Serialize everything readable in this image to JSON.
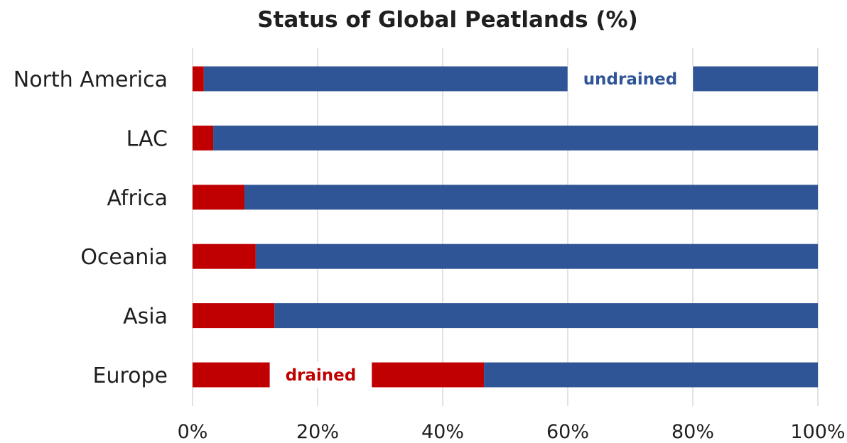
{
  "chart_data": {
    "type": "bar",
    "orientation": "horizontal",
    "stacked": true,
    "title": "Status of Global Peatlands (%)",
    "categories": [
      "North America",
      "LAC",
      "Africa",
      "Oceania",
      "Asia",
      "Europe"
    ],
    "series": [
      {
        "name": "drained",
        "values": [
          1.8,
          3.3,
          8.3,
          10.1,
          13.1,
          46.6
        ]
      },
      {
        "name": "undrained",
        "values": [
          98.2,
          96.7,
          91.7,
          89.9,
          86.9,
          53.4
        ]
      }
    ],
    "xlim": [
      0,
      100
    ],
    "x_ticks": [
      "0%",
      "20%",
      "40%",
      "60%",
      "80%",
      "100%"
    ],
    "grid": "vertical",
    "annotations": [
      {
        "text": "undrained",
        "series": "undrained",
        "category": "North America",
        "at_value": 70
      },
      {
        "text": "drained",
        "series": "drained",
        "category": "Europe",
        "at_value": 20.5
      }
    ]
  },
  "colors": {
    "drained": "#c00000",
    "undrained": "#2f5597",
    "drained_label": "#c00000",
    "undrained_label": "#2f5597"
  }
}
